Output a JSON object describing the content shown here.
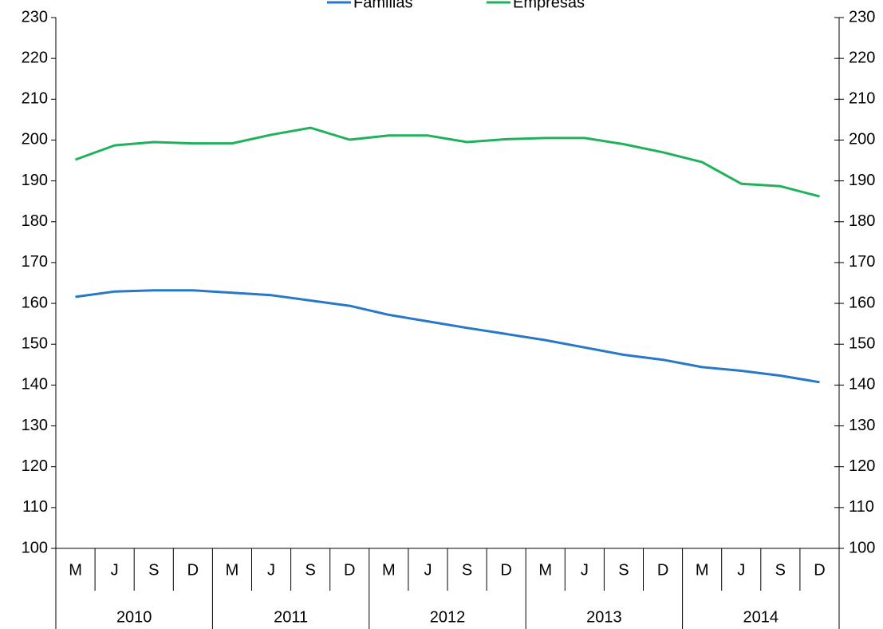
{
  "chart_data": {
    "type": "line",
    "categories": [
      "M",
      "J",
      "S",
      "D",
      "M",
      "J",
      "S",
      "D",
      "M",
      "J",
      "S",
      "D",
      "M",
      "J",
      "S",
      "D",
      "M",
      "J",
      "S",
      "D"
    ],
    "groups": [
      "2010",
      "2011",
      "2012",
      "2013",
      "2014"
    ],
    "series": [
      {
        "name": "Familias",
        "color": "#2878c8",
        "values": [
          161.6,
          162.9,
          163.2,
          163.2,
          162.6,
          162.0,
          160.7,
          159.4,
          157.2,
          155.6,
          154.0,
          152.5,
          151.0,
          149.2,
          147.4,
          146.2,
          144.4,
          143.5,
          142.3,
          140.7
        ]
      },
      {
        "name": "Empresas",
        "color": "#1fb25a",
        "values": [
          195.2,
          198.7,
          199.5,
          199.2,
          199.2,
          201.3,
          203.0,
          200.1,
          201.1,
          201.1,
          199.5,
          200.2,
          200.5,
          200.5,
          199.0,
          197.0,
          194.6,
          189.3,
          188.7,
          186.2
        ]
      }
    ],
    "ylim": [
      100,
      230
    ],
    "yticks": [
      100,
      110,
      120,
      130,
      140,
      150,
      160,
      170,
      180,
      190,
      200,
      210,
      220,
      230
    ],
    "y2lim": [
      100,
      230
    ],
    "y2ticks": [
      100,
      110,
      120,
      130,
      140,
      150,
      160,
      170,
      180,
      190,
      200,
      210,
      220,
      230
    ],
    "legend": "top"
  }
}
